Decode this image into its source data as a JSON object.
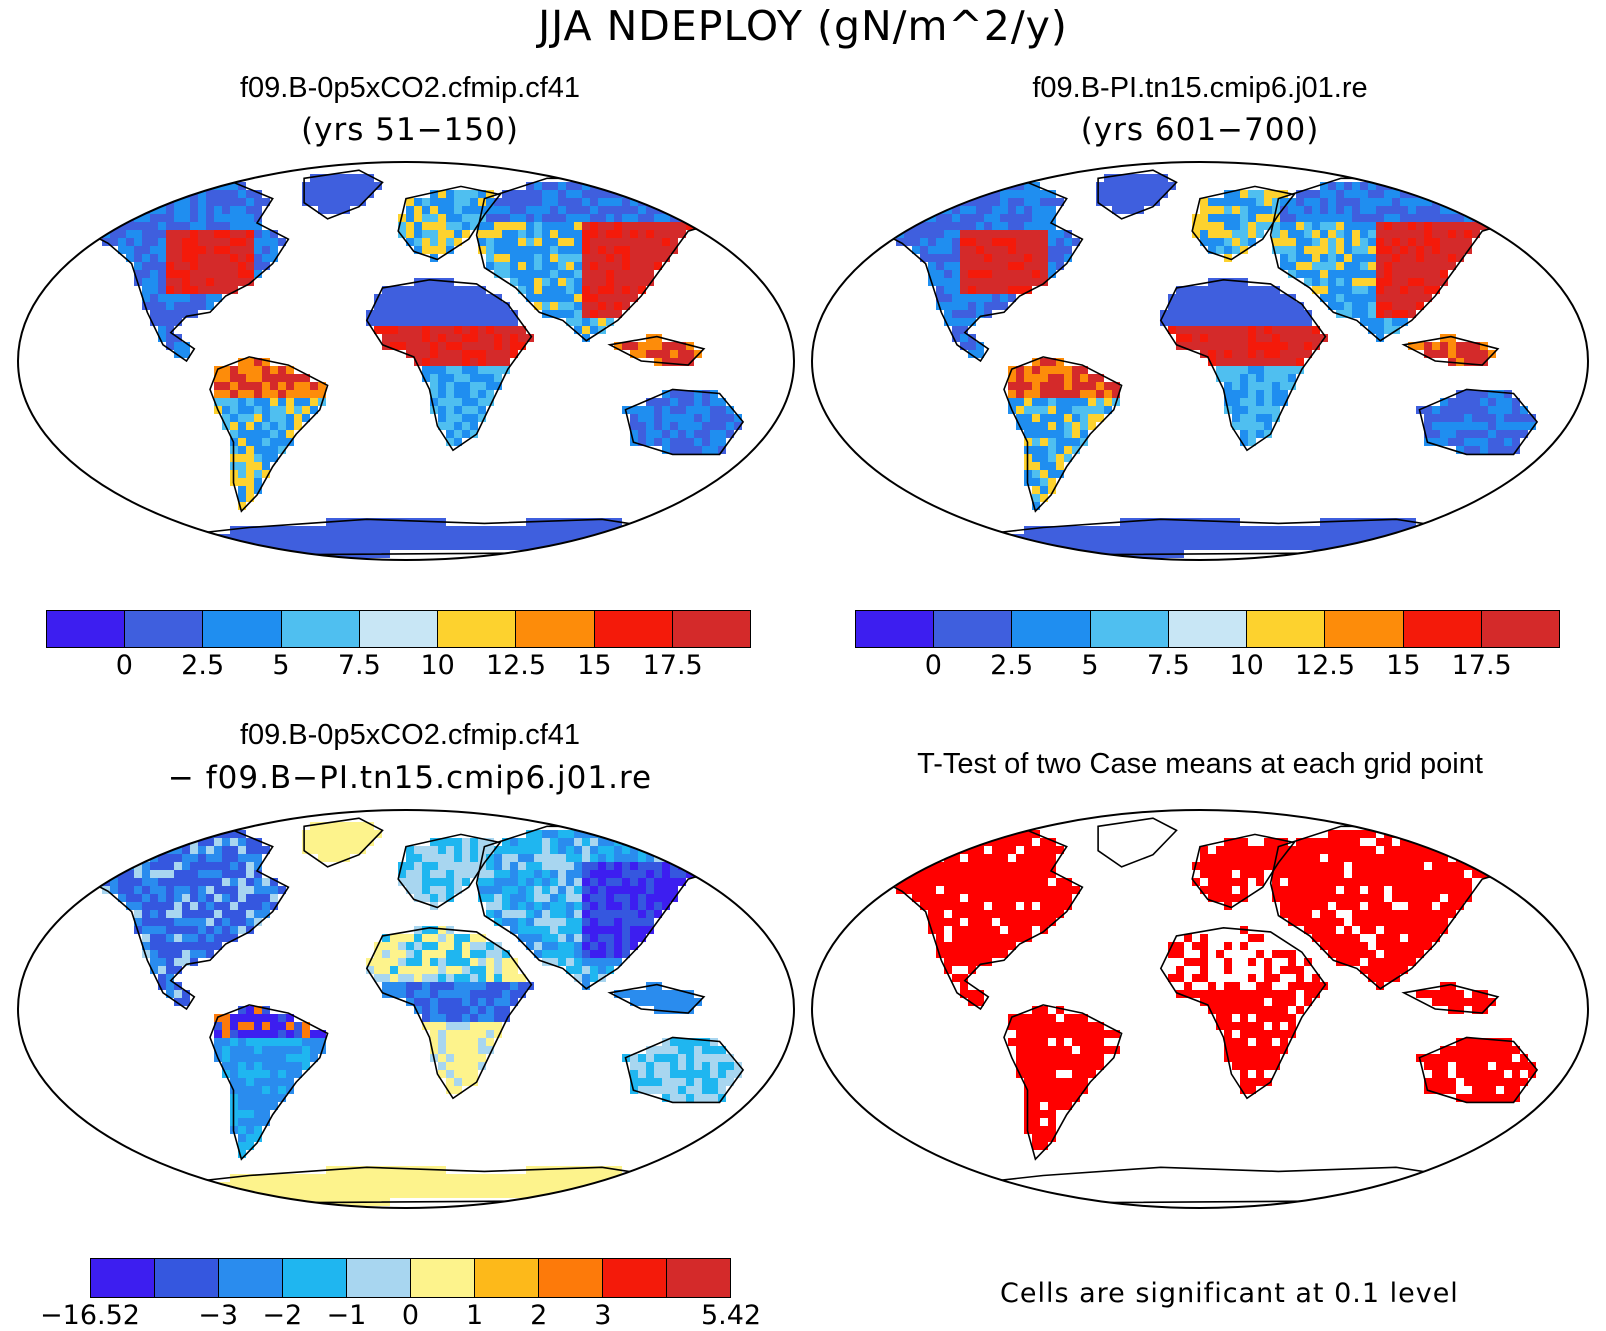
{
  "title": "JJA NDEPLOY (gN/m^2/y)",
  "panels": {
    "case1": {
      "title": "f09.B-0p5xCO2.cfmip.cf41",
      "subtitle": "(yrs 51−150)"
    },
    "case2": {
      "title": "f09.B-PI.tn15.cmip6.j01.re",
      "subtitle": "(yrs 601−700)"
    },
    "diff": {
      "title": "f09.B-0p5xCO2.cfmip.cf41",
      "subtitle": "− f09.B−PI.tn15.cmip6.j01.re"
    },
    "ttest": {
      "title": "T-Test of two Case means at each grid point",
      "note": "Cells are significant at 0.1 level"
    }
  },
  "colorbars": {
    "abs": {
      "colors": [
        "#3d1ef0",
        "#3f5fde",
        "#1f8ef0",
        "#4fbff0",
        "#c8e6f5",
        "#fdd22e",
        "#fd8c0a",
        "#f41a0a",
        "#d42a2a"
      ],
      "labels": [
        "0",
        "2.5",
        "5",
        "7.5",
        "10",
        "12.5",
        "15",
        "17.5"
      ]
    },
    "diff": {
      "colors": [
        "#3d1ef0",
        "#3557df",
        "#2a8cee",
        "#1fb6f0",
        "#a8d6f0",
        "#fdf38c",
        "#fdb91a",
        "#fd7a0a",
        "#f41a0a",
        "#d42a2a"
      ],
      "labels": [
        "−16.52",
        "−3",
        "−2",
        "−1",
        "0",
        "1",
        "2",
        "3",
        "5.42"
      ]
    }
  },
  "map_colors": {
    "ocean": "#ffffff",
    "ttest_signif": "#ff0000"
  }
}
